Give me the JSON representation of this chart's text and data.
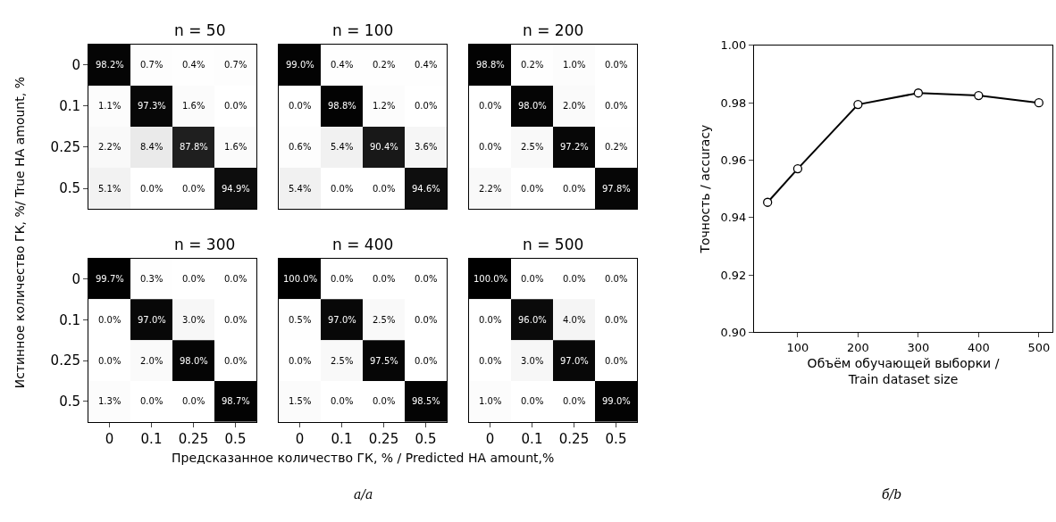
{
  "chart_data": [
    {
      "type": "heatmap",
      "title": "n = 50",
      "ylabel": "Истинное количество ГК, %/ True HA amount, %",
      "tick_labels": "y",
      "categories": [
        "0",
        "0.1",
        "0.25",
        "0.5"
      ],
      "y_categories": [
        "0",
        "0.1",
        "0.25",
        "0.5"
      ],
      "cells": [
        [
          98.2,
          0.7,
          0.4,
          0.7
        ],
        [
          1.1,
          97.3,
          1.6,
          0.0
        ],
        [
          2.2,
          8.4,
          87.8,
          1.6
        ],
        [
          5.1,
          0.0,
          0.0,
          94.9
        ]
      ],
      "cell_labels": [
        [
          "98.2%",
          "0.7%",
          "0.4%",
          "0.7%"
        ],
        [
          "1.1%",
          "97.3%",
          "1.6%",
          "0.0%"
        ],
        [
          "2.2%",
          "8.4%",
          "87.8%",
          "1.6%"
        ],
        [
          "5.1%",
          "0.0%",
          "0.0%",
          "94.9%"
        ]
      ]
    },
    {
      "type": "heatmap",
      "title": "n = 100",
      "tick_labels": false,
      "categories": [
        "0",
        "0.1",
        "0.25",
        "0.5"
      ],
      "y_categories": [
        "0",
        "0.1",
        "0.25",
        "0.5"
      ],
      "cells": [
        [
          99.0,
          0.4,
          0.2,
          0.4
        ],
        [
          0.0,
          98.8,
          1.2,
          0.0
        ],
        [
          0.6,
          5.4,
          90.4,
          3.6
        ],
        [
          5.4,
          0.0,
          0.0,
          94.6
        ]
      ],
      "cell_labels": [
        [
          "99.0%",
          "0.4%",
          "0.2%",
          "0.4%"
        ],
        [
          "0.0%",
          "98.8%",
          "1.2%",
          "0.0%"
        ],
        [
          "0.6%",
          "5.4%",
          "90.4%",
          "3.6%"
        ],
        [
          "5.4%",
          "0.0%",
          "0.0%",
          "94.6%"
        ]
      ]
    },
    {
      "type": "heatmap",
      "title": "n = 200",
      "tick_labels": false,
      "categories": [
        "0",
        "0.1",
        "0.25",
        "0.5"
      ],
      "y_categories": [
        "0",
        "0.1",
        "0.25",
        "0.5"
      ],
      "cells": [
        [
          98.8,
          0.2,
          1.0,
          0.0
        ],
        [
          0.0,
          98.0,
          2.0,
          0.0
        ],
        [
          0.0,
          2.5,
          97.2,
          0.2
        ],
        [
          2.2,
          0.0,
          0.0,
          97.8
        ]
      ],
      "cell_labels": [
        [
          "98.8%",
          "0.2%",
          "1.0%",
          "0.0%"
        ],
        [
          "0.0%",
          "98.0%",
          "2.0%",
          "0.0%"
        ],
        [
          "0.0%",
          "2.5%",
          "97.2%",
          "0.2%"
        ],
        [
          "2.2%",
          "0.0%",
          "0.0%",
          "97.8%"
        ]
      ]
    },
    {
      "type": "heatmap",
      "title": "n = 300",
      "categories": [
        "0",
        "0.1",
        "0.25",
        "0.5"
      ],
      "y_categories": [
        "0",
        "0.1",
        "0.25",
        "0.5"
      ],
      "cells": [
        [
          99.7,
          0.3,
          0.0,
          0.0
        ],
        [
          0.0,
          97.0,
          3.0,
          0.0
        ],
        [
          0.0,
          2.0,
          98.0,
          0.0
        ],
        [
          1.3,
          0.0,
          0.0,
          98.7
        ]
      ],
      "cell_labels": [
        [
          "99.7%",
          "0.3%",
          "0.0%",
          "0.0%"
        ],
        [
          "0.0%",
          "97.0%",
          "3.0%",
          "0.0%"
        ],
        [
          "0.0%",
          "2.0%",
          "98.0%",
          "0.0%"
        ],
        [
          "1.3%",
          "0.0%",
          "0.0%",
          "98.7%"
        ]
      ]
    },
    {
      "type": "heatmap",
      "title": "n = 400",
      "xlabel": "Предсказанное количество ГК, % / Predicted HA amount,%",
      "annotations": [
        "а/a"
      ],
      "tick_labels": "x",
      "categories": [
        "0",
        "0.1",
        "0.25",
        "0.5"
      ],
      "y_categories": [
        "0",
        "0.1",
        "0.25",
        "0.5"
      ],
      "cells": [
        [
          100.0,
          0.0,
          0.0,
          0.0
        ],
        [
          0.5,
          97.0,
          2.5,
          0.0
        ],
        [
          0.0,
          2.5,
          97.5,
          0.0
        ],
        [
          1.5,
          0.0,
          0.0,
          98.5
        ]
      ],
      "cell_labels": [
        [
          "100.0%",
          "0.0%",
          "0.0%",
          "0.0%"
        ],
        [
          "0.5%",
          "97.0%",
          "2.5%",
          "0.0%"
        ],
        [
          "0.0%",
          "2.5%",
          "97.5%",
          "0.0%"
        ],
        [
          "1.5%",
          "0.0%",
          "0.0%",
          "98.5%"
        ]
      ]
    },
    {
      "type": "heatmap",
      "title": "n = 500",
      "tick_labels": "x",
      "categories": [
        "0",
        "0.1",
        "0.25",
        "0.5"
      ],
      "y_categories": [
        "0",
        "0.1",
        "0.25",
        "0.5"
      ],
      "cells": [
        [
          100.0,
          0.0,
          0.0,
          0.0
        ],
        [
          0.0,
          96.0,
          4.0,
          0.0
        ],
        [
          0.0,
          3.0,
          97.0,
          0.0
        ],
        [
          1.0,
          0.0,
          0.0,
          99.0
        ]
      ],
      "cell_labels": [
        [
          "100.0%",
          "0.0%",
          "0.0%",
          "0.0%"
        ],
        [
          "0.0%",
          "96.0%",
          "4.0%",
          "0.0%"
        ],
        [
          "0.0%",
          "3.0%",
          "97.0%",
          "0.0%"
        ],
        [
          "1.0%",
          "0.0%",
          "0.0%",
          "99.0%"
        ]
      ]
    },
    {
      "type": "line",
      "xlabel": "Объём обучающей выборки /\nTrain dataset size",
      "ylabel": "Точность / accuracy",
      "annotations": [
        "б/b"
      ],
      "x": [
        50,
        100,
        200,
        300,
        400,
        500
      ],
      "series": [
        {
          "color": "#000000",
          "values": [
            0.9453,
            0.957,
            0.9794,
            0.9834,
            0.9825,
            0.98
          ]
        }
      ],
      "xlim": [
        27.5,
        522.5
      ],
      "xticks": [
        100,
        200,
        300,
        400,
        500
      ],
      "ylim": [
        0.9,
        1.0
      ],
      "yticks": [
        {
          "value": 0.9,
          "label": "0.90"
        },
        {
          "value": 0.92,
          "label": "0.92"
        },
        {
          "value": 0.94,
          "label": "0.94"
        },
        {
          "value": 0.96,
          "label": "0.96"
        },
        {
          "value": 0.98,
          "label": "0.98"
        },
        {
          "value": 1.0,
          "label": "1.00"
        }
      ],
      "marker": "circle",
      "line_style": "solid"
    }
  ]
}
